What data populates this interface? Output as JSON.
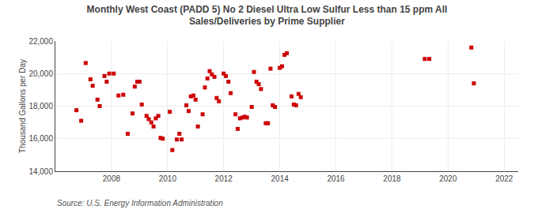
{
  "chart_data": {
    "type": "scatter",
    "title": "Monthly West Coast (PADD 5) No 2 Diesel Ultra Low Sulfur Less than 15 ppm All\nSales/Deliveries by Prime Supplier",
    "ylabel": "Thousand Gallons per Day",
    "annotations": [
      "Source: U.S. Energy Information Administration"
    ],
    "color": "#cc0000",
    "marker": "square",
    "grid": true,
    "xlim": [
      2006.0,
      2022.5
    ],
    "xticks": [
      2008,
      2010,
      2012,
      2014,
      2016,
      2018,
      2020,
      2022
    ],
    "ylim": [
      14000,
      22000
    ],
    "yticks": [
      {
        "value": 14000,
        "label": "14,000"
      },
      {
        "value": 16000,
        "label": "16,000"
      },
      {
        "value": 18000,
        "label": "18,000"
      },
      {
        "value": 20000,
        "label": "20,000"
      },
      {
        "value": 22000,
        "label": "22,000"
      }
    ],
    "x": [
      2006.75,
      2006.92,
      2007.08,
      2007.25,
      2007.33,
      2007.5,
      2007.58,
      2007.75,
      2007.83,
      2007.92,
      2008.08,
      2008.25,
      2008.42,
      2008.58,
      2008.75,
      2008.83,
      2008.92,
      2009.0,
      2009.08,
      2009.25,
      2009.33,
      2009.42,
      2009.5,
      2009.58,
      2009.67,
      2009.75,
      2009.83,
      2010.08,
      2010.17,
      2010.33,
      2010.42,
      2010.5,
      2010.67,
      2010.75,
      2010.83,
      2010.92,
      2011.0,
      2011.08,
      2011.25,
      2011.33,
      2011.42,
      2011.5,
      2011.58,
      2011.67,
      2011.75,
      2011.83,
      2012.0,
      2012.08,
      2012.17,
      2012.25,
      2012.42,
      2012.5,
      2012.58,
      2012.67,
      2012.75,
      2012.83,
      2013.0,
      2013.08,
      2013.17,
      2013.25,
      2013.33,
      2013.5,
      2013.58,
      2013.67,
      2013.75,
      2013.83,
      2014.0,
      2014.08,
      2014.17,
      2014.25,
      2014.42,
      2014.5,
      2014.58,
      2014.67,
      2014.75,
      2019.17,
      2019.33,
      2020.83,
      2020.92
    ],
    "values": [
      17750,
      17100,
      20650,
      19650,
      19250,
      18400,
      18000,
      19850,
      19500,
      20000,
      20000,
      18650,
      18700,
      16300,
      17550,
      19200,
      19500,
      19500,
      18100,
      17400,
      17200,
      17000,
      16750,
      17250,
      17400,
      16050,
      16000,
      17650,
      15300,
      15950,
      16300,
      15950,
      18050,
      17700,
      18600,
      18650,
      18400,
      16750,
      17500,
      19150,
      19700,
      20150,
      19950,
      19800,
      18500,
      18300,
      20000,
      19850,
      19500,
      18800,
      17500,
      16600,
      17250,
      17300,
      17350,
      17300,
      17950,
      20100,
      19500,
      19350,
      19050,
      16950,
      16950,
      20300,
      18050,
      17950,
      20350,
      20450,
      21150,
      21250,
      18600,
      18100,
      18050,
      18750,
      18550,
      20900,
      20900,
      21600,
      19400
    ]
  }
}
